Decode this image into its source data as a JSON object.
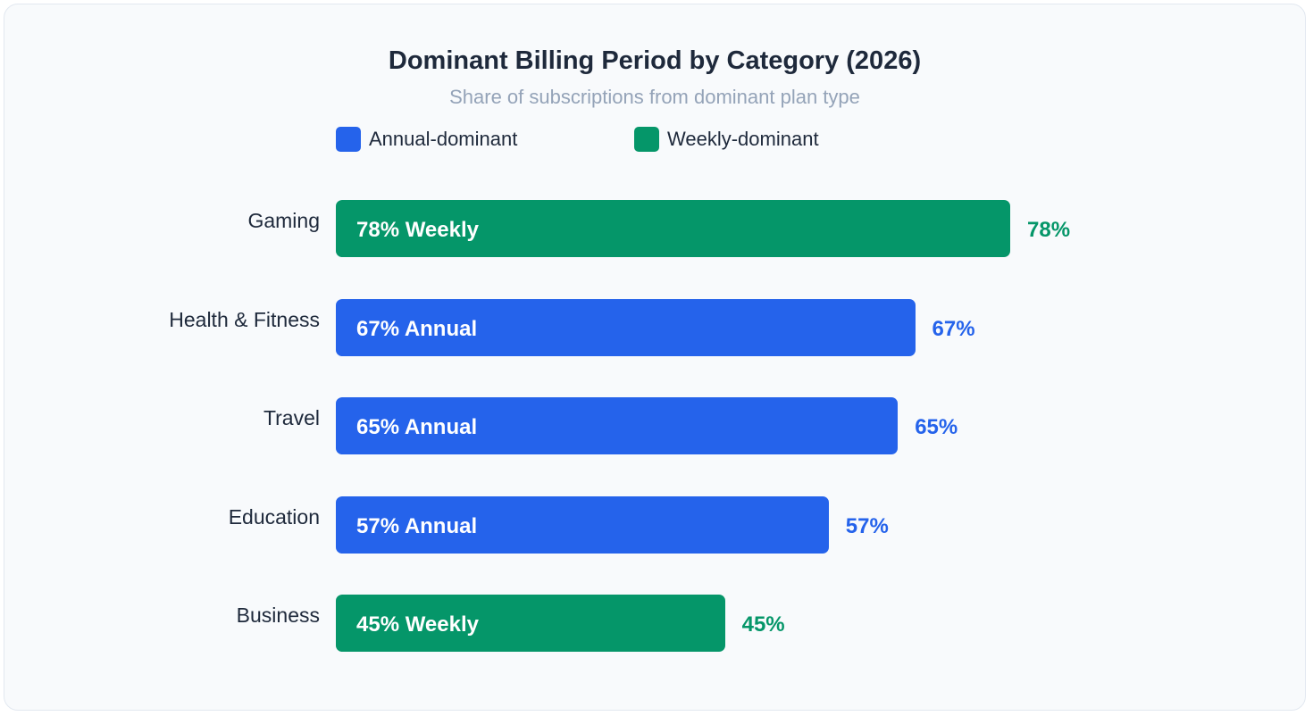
{
  "colors": {
    "annual": "#2563eb",
    "weekly": "#059669"
  },
  "chart_data": {
    "type": "bar",
    "orientation": "horizontal",
    "title": "Dominant Billing Period by Category (2026)",
    "subtitle": "Share of subscriptions from dominant plan type",
    "legend": [
      {
        "key": "annual",
        "label": "Annual-dominant"
      },
      {
        "key": "weekly",
        "label": "Weekly-dominant"
      }
    ],
    "legend_position": "top",
    "xlim": [
      0,
      100
    ],
    "grid": false,
    "bars": [
      {
        "category": "Gaming",
        "value": 78,
        "type": "weekly",
        "inner_label": "78% Weekly",
        "value_label": "78%"
      },
      {
        "category": "Health & Fitness",
        "value": 67,
        "type": "annual",
        "inner_label": "67% Annual",
        "value_label": "67%"
      },
      {
        "category": "Travel",
        "value": 65,
        "type": "annual",
        "inner_label": "65% Annual",
        "value_label": "65%"
      },
      {
        "category": "Education",
        "value": 57,
        "type": "annual",
        "inner_label": "57% Annual",
        "value_label": "57%"
      },
      {
        "category": "Business",
        "value": 45,
        "type": "weekly",
        "inner_label": "45% Weekly",
        "value_label": "45%"
      }
    ]
  }
}
